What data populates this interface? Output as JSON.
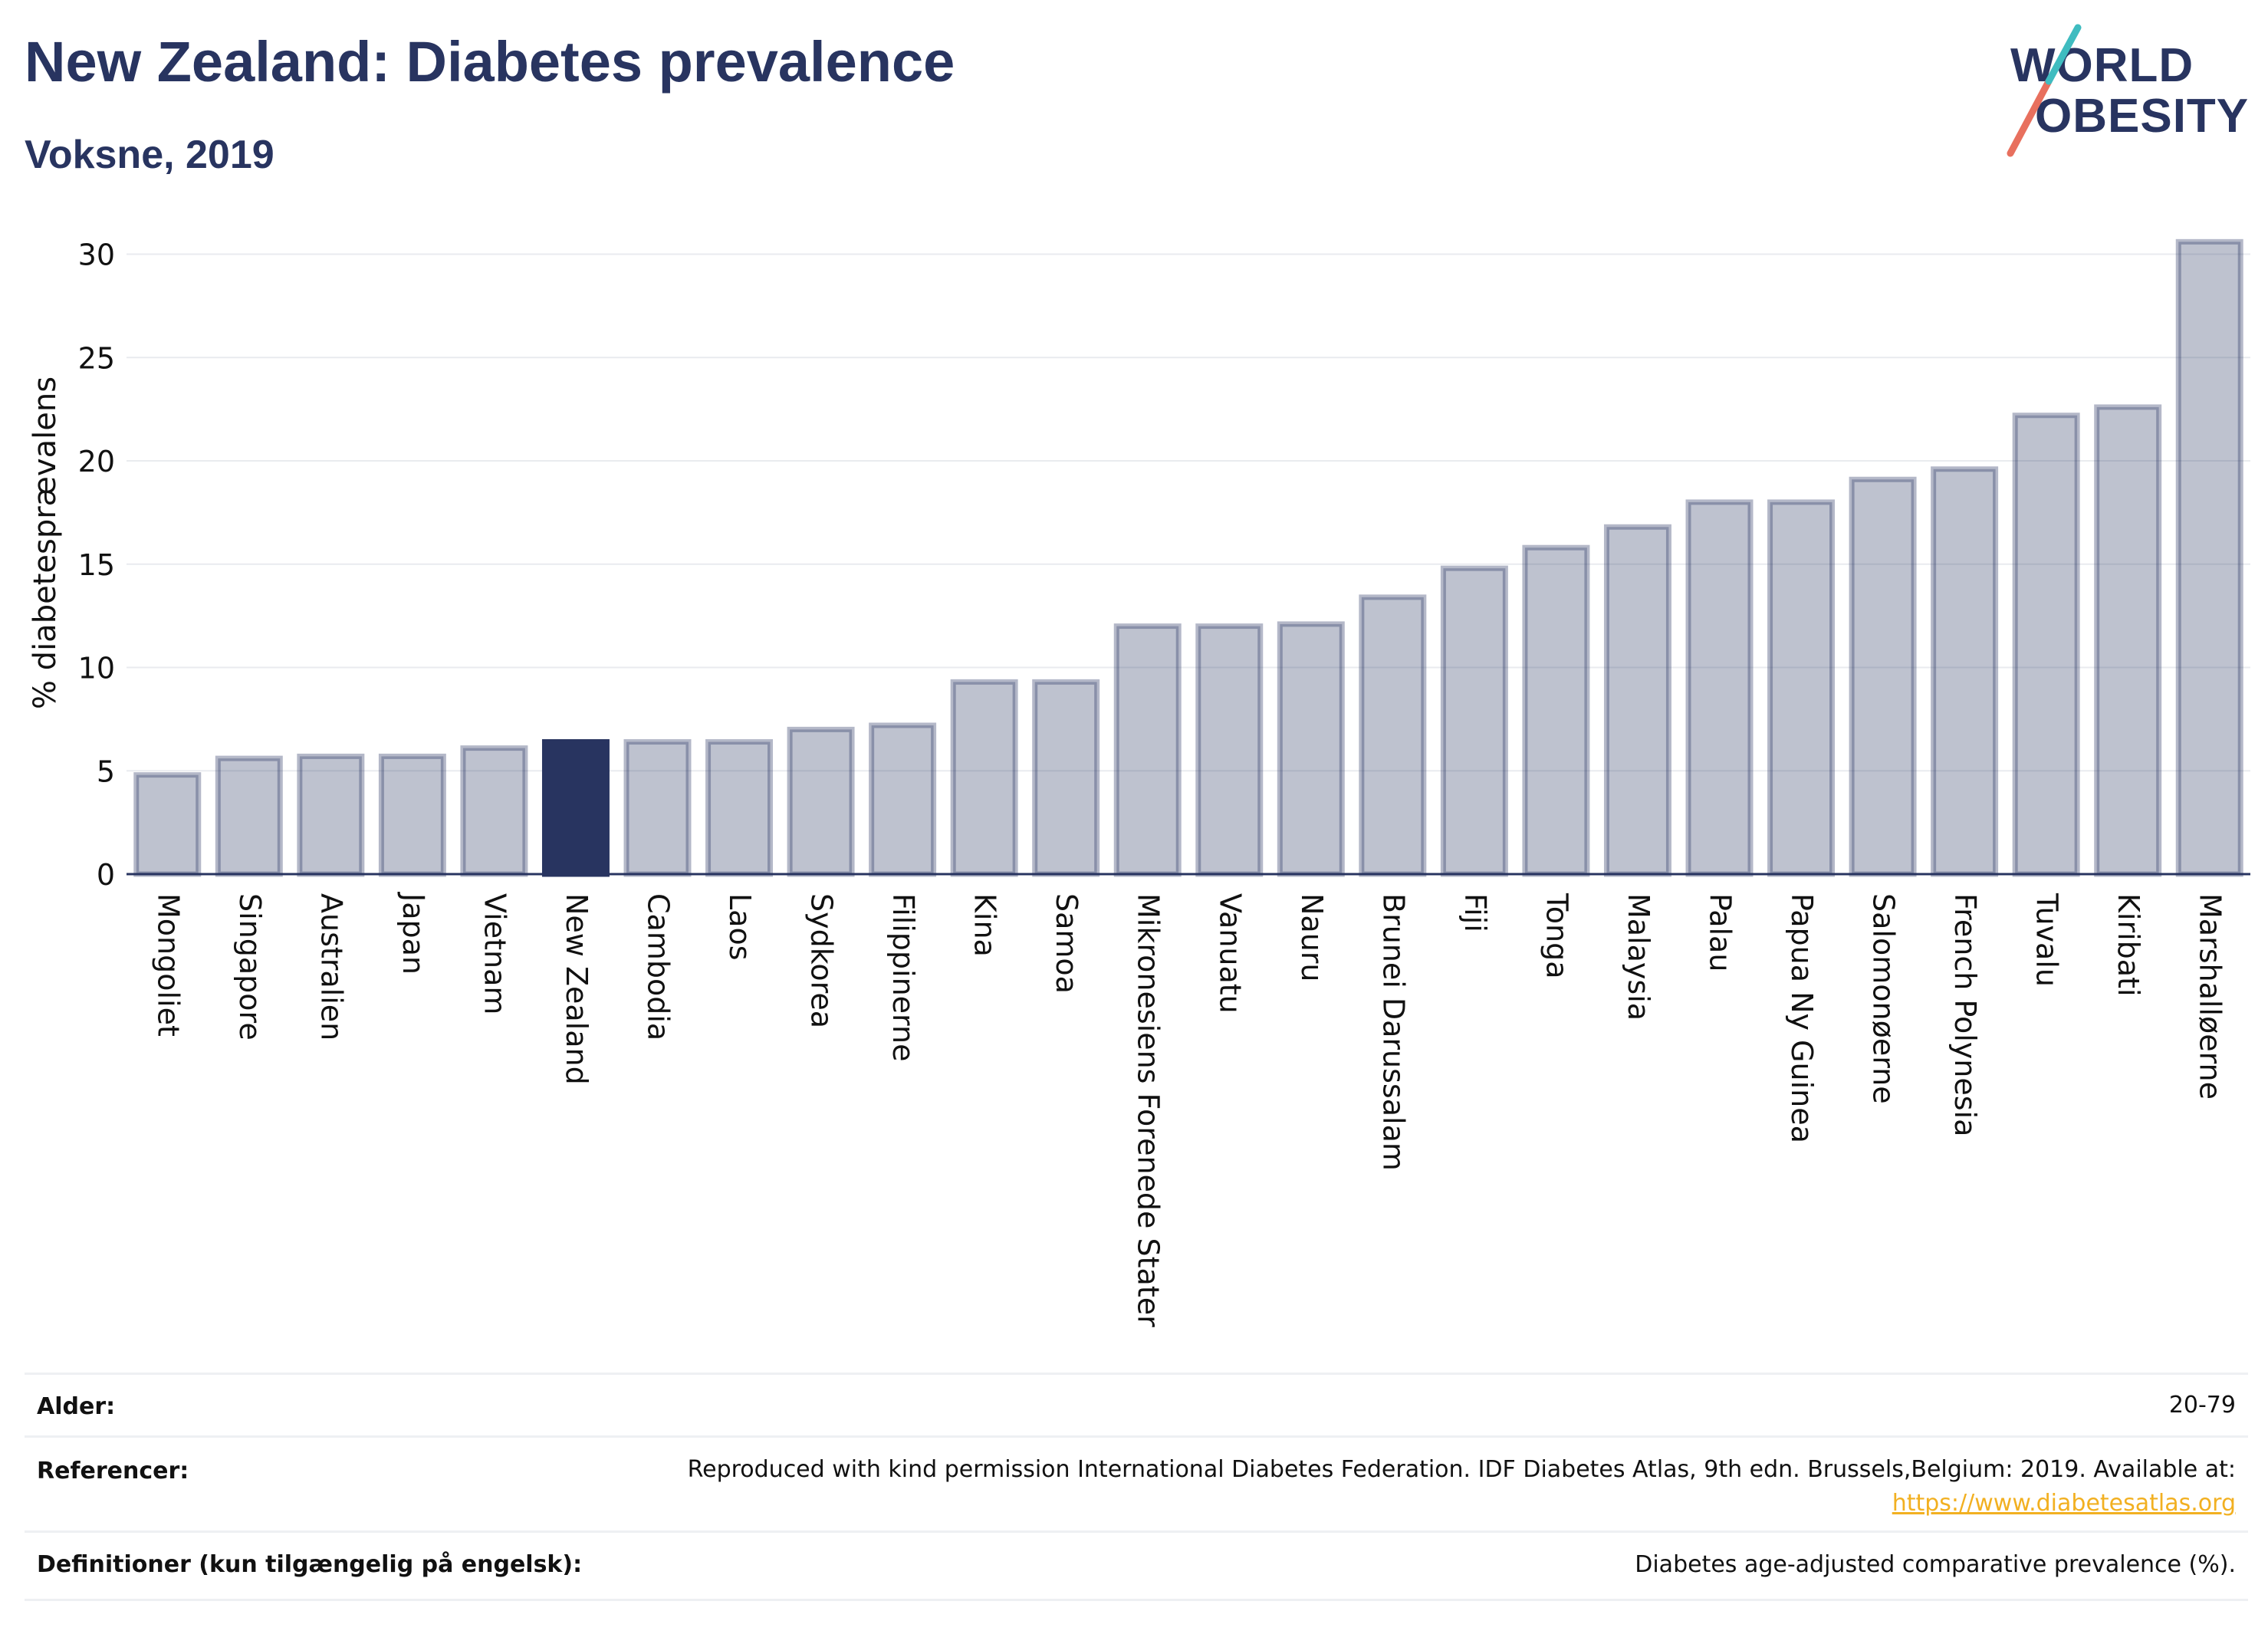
{
  "header": {
    "title": "New Zealand: Diabetes prevalence",
    "subtitle": "Voksne, 2019"
  },
  "logo": {
    "line1": "WORLD",
    "line2": "OBESITY"
  },
  "chart_data": {
    "type": "bar",
    "ylabel": "% diabetesprævalens",
    "xlabel": "",
    "ylim": [
      0,
      32
    ],
    "yticks": [
      0,
      5,
      10,
      15,
      20,
      25,
      30
    ],
    "grid": true,
    "highlight": "New Zealand",
    "colors": {
      "bar": "#283460",
      "highlight": "#283460"
    },
    "categories": [
      "Mongoliet",
      "Singapore",
      "Australien",
      "Japan",
      "Vietnam",
      "New Zealand",
      "Cambodia",
      "Laos",
      "Sydkorea",
      "Filippinerne",
      "Kina",
      "Samoa",
      "Mikronesiens Forenede Stater",
      "Vanuatu",
      "Nauru",
      "Brunei Darussalam",
      "Fiji",
      "Tonga",
      "Malaysia",
      "Palau",
      "Papua Ny Guinea",
      "Salomonøerne",
      "French Polynesia",
      "Tuvalu",
      "Kiribati",
      "Marshalløerne"
    ],
    "values": [
      4.8,
      5.6,
      5.7,
      5.7,
      6.1,
      6.4,
      6.4,
      6.4,
      7.0,
      7.2,
      9.3,
      9.3,
      12.0,
      12.0,
      12.1,
      13.4,
      14.8,
      15.8,
      16.8,
      18.0,
      18.0,
      19.1,
      19.6,
      22.2,
      22.6,
      30.6
    ]
  },
  "footer": {
    "age_label": "Alder:",
    "age_value": "20-79",
    "ref_label": "Referencer:",
    "ref_text": "Reproduced with kind permission International Diabetes Federation. IDF Diabetes Atlas, 9th edn. Brussels,Belgium: 2019. Available at:",
    "ref_link": "https://www.diabetesatlas.org",
    "def_label": "Definitioner (kun tilgængelig på engelsk):",
    "def_value": "Diabetes age-adjusted comparative prevalence (%)."
  }
}
